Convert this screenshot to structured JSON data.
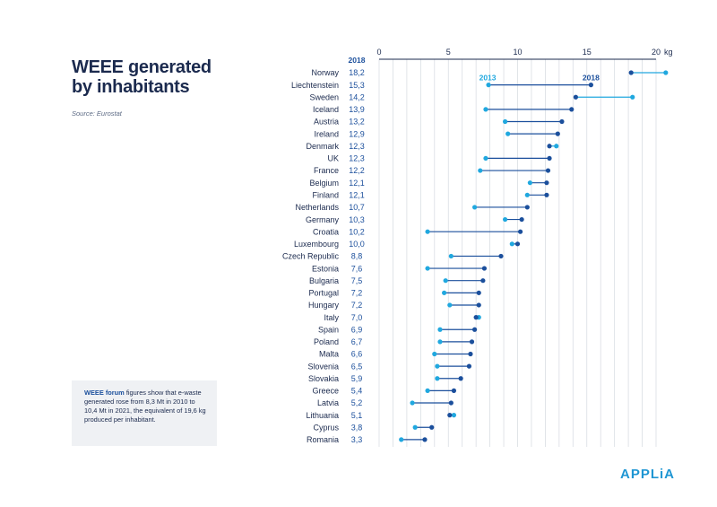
{
  "title_line1": "WEEE generated",
  "title_line2": "by inhabitants",
  "source": "Source: Eurostat",
  "note": {
    "highlight": "WEEE forum",
    "text": " figures show that e-waste generated rose from 8,3 Mt in 2010 to 10,4 Mt in 2021, the equivalent of 19,6 kg produced per inhabitant."
  },
  "logo": "APPLiA",
  "colors": {
    "y2013": "#20a8df",
    "y2018": "#1b4f9c",
    "grid": "#d9dde3",
    "text": "#1b2a4e"
  },
  "chart_data": {
    "type": "dumbbell",
    "title": "WEEE generated by inhabitants",
    "x_unit": "kg",
    "xlim": [
      0,
      20
    ],
    "x_ticks": [
      0,
      5,
      10,
      15,
      20
    ],
    "x_tick_labels": [
      "0",
      "5",
      "10",
      "15",
      "20"
    ],
    "value_column_header": "2018",
    "series_labels": {
      "y2013": "2013",
      "y2018": "2018"
    },
    "rows": [
      {
        "country": "Norway",
        "label": "18,2",
        "v2018": 18.2,
        "v2013": 20.7
      },
      {
        "country": "Liechtenstein",
        "label": "15,3",
        "v2018": 15.3,
        "v2013": 7.9
      },
      {
        "country": "Sweden",
        "label": "14,2",
        "v2018": 14.2,
        "v2013": 18.3
      },
      {
        "country": "Iceland",
        "label": "13,9",
        "v2018": 13.9,
        "v2013": 7.7
      },
      {
        "country": "Austria",
        "label": "13,2",
        "v2018": 13.2,
        "v2013": 9.1
      },
      {
        "country": "Ireland",
        "label": "12,9",
        "v2018": 12.9,
        "v2013": 9.3
      },
      {
        "country": "Denmark",
        "label": "12,3",
        "v2018": 12.3,
        "v2013": 12.8
      },
      {
        "country": "UK",
        "label": "12,3",
        "v2018": 12.3,
        "v2013": 7.7
      },
      {
        "country": "France",
        "label": "12,2",
        "v2018": 12.2,
        "v2013": 7.3
      },
      {
        "country": "Belgium",
        "label": "12,1",
        "v2018": 12.1,
        "v2013": 10.9
      },
      {
        "country": "Finland",
        "label": "12,1",
        "v2018": 12.1,
        "v2013": 10.7
      },
      {
        "country": "Netherlands",
        "label": "10,7",
        "v2018": 10.7,
        "v2013": 6.9
      },
      {
        "country": "Germany",
        "label": "10,3",
        "v2018": 10.3,
        "v2013": 9.1
      },
      {
        "country": "Croatia",
        "label": "10,2",
        "v2018": 10.2,
        "v2013": 3.5
      },
      {
        "country": "Luxembourg",
        "label": "10,0",
        "v2018": 10.0,
        "v2013": 9.6
      },
      {
        "country": "Czech Republic",
        "label": "8,8",
        "v2018": 8.8,
        "v2013": 5.2
      },
      {
        "country": "Estonia",
        "label": "7,6",
        "v2018": 7.6,
        "v2013": 3.5
      },
      {
        "country": "Bulgaria",
        "label": "7,5",
        "v2018": 7.5,
        "v2013": 4.8
      },
      {
        "country": "Portugal",
        "label": "7,2",
        "v2018": 7.2,
        "v2013": 4.7
      },
      {
        "country": "Hungary",
        "label": "7,2",
        "v2018": 7.2,
        "v2013": 5.1
      },
      {
        "country": "Italy",
        "label": "7,0",
        "v2018": 7.0,
        "v2013": 7.2
      },
      {
        "country": "Spain",
        "label": "6,9",
        "v2018": 6.9,
        "v2013": 4.4
      },
      {
        "country": "Poland",
        "label": "6,7",
        "v2018": 6.7,
        "v2013": 4.4
      },
      {
        "country": "Malta",
        "label": "6,6",
        "v2018": 6.6,
        "v2013": 4.0
      },
      {
        "country": "Slovenia",
        "label": "6,5",
        "v2018": 6.5,
        "v2013": 4.2
      },
      {
        "country": "Slovakia",
        "label": "5,9",
        "v2018": 5.9,
        "v2013": 4.2
      },
      {
        "country": "Greece",
        "label": "5,4",
        "v2018": 5.4,
        "v2013": 3.5
      },
      {
        "country": "Latvia",
        "label": "5,2",
        "v2018": 5.2,
        "v2013": 2.4
      },
      {
        "country": "Lithuania",
        "label": "5,1",
        "v2018": 5.1,
        "v2013": 5.4
      },
      {
        "country": "Cyprus",
        "label": "3,8",
        "v2018": 3.8,
        "v2013": 2.6
      },
      {
        "country": "Romania",
        "label": "3,3",
        "v2018": 3.3,
        "v2013": 1.6
      }
    ]
  }
}
